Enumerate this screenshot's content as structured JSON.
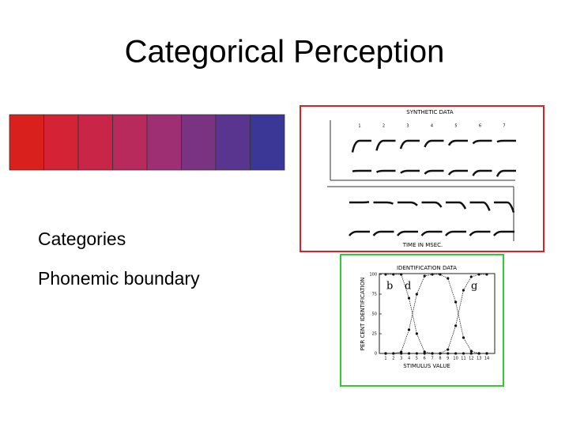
{
  "title": "Categorical Perception",
  "swatches": [
    "#d9201c",
    "#d42335",
    "#c92546",
    "#b82a5c",
    "#9e2f73",
    "#7a3383",
    "#5a358f",
    "#3a3797"
  ],
  "bullets": [
    "Categories",
    "Phonemic boundary"
  ],
  "synthetic_figure": {
    "title": "SYNTHETIC DATA",
    "x_label": "TIME IN MSEC.",
    "stimuli": [
      "1",
      "2",
      "3",
      "4",
      "5",
      "6",
      "7"
    ]
  },
  "identification_figure": {
    "title": "IDENTIFICATION DATA",
    "y_label": "PER CENT IDENTIFICATION",
    "x_label": "STIMULUS VALUE",
    "yticks": [
      "0",
      "25",
      "50",
      "75",
      "100"
    ],
    "xticks": [
      "1",
      "2",
      "3",
      "4",
      "5",
      "6",
      "7",
      "8",
      "9",
      "10",
      "11",
      "12",
      "13",
      "14"
    ],
    "phonemes": [
      "b",
      "d",
      "g"
    ]
  }
}
